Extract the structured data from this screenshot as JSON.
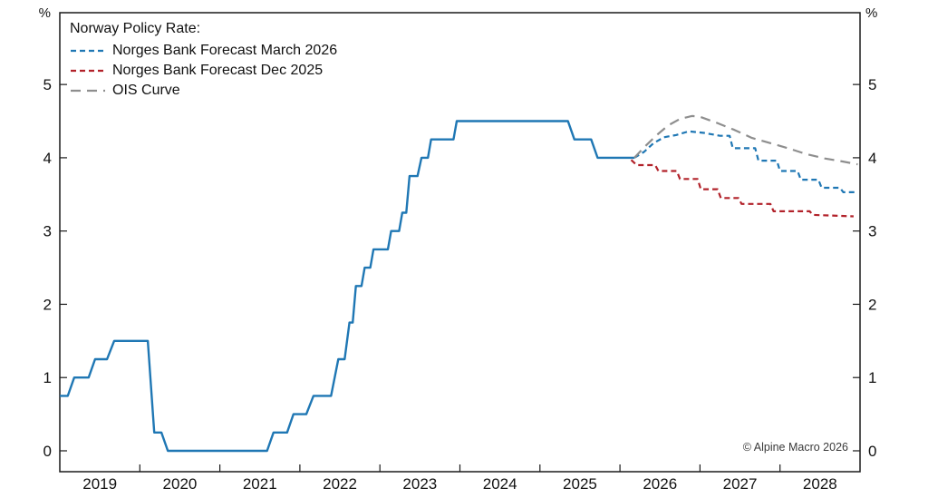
{
  "chart_data": {
    "type": "line",
    "title": "Norway Policy Rate:",
    "unit_label": "%",
    "footnote": "© Alpine Macro 2026",
    "x_axis": {
      "start": 2019,
      "end": 2029,
      "tick_years": [
        2019,
        2020,
        2021,
        2022,
        2023,
        2024,
        2025,
        2026,
        2027,
        2028,
        2029
      ],
      "year_labels": [
        "2019",
        "2020",
        "2021",
        "2022",
        "2023",
        "2024",
        "2025",
        "2026",
        "2027",
        "2028"
      ]
    },
    "y_axis": {
      "min": -0.285,
      "max": 5.98,
      "ticks": [
        0,
        1,
        2,
        3,
        4,
        5
      ]
    },
    "legend": [
      {
        "name": "Norges Bank Forecast March 2026",
        "color": "#1f77b4",
        "dash": "short"
      },
      {
        "name": "Norges Bank Forecast Dec 2025",
        "color": "#b2222a",
        "dash": "short"
      },
      {
        "name": "OIS Curve",
        "color": "#8e8e8e",
        "dash": "long"
      }
    ],
    "series": [
      {
        "name": "Policy Rate (historical)",
        "color": "#1f77b4",
        "dash": "none",
        "width": 2.4,
        "points": [
          [
            2019.0,
            0.75
          ],
          [
            2019.1,
            0.75
          ],
          [
            2019.18,
            1.0
          ],
          [
            2019.36,
            1.0
          ],
          [
            2019.44,
            1.25
          ],
          [
            2019.59,
            1.25
          ],
          [
            2019.68,
            1.5
          ],
          [
            2020.1,
            1.5
          ],
          [
            2020.18,
            0.25
          ],
          [
            2020.27,
            0.25
          ],
          [
            2020.35,
            0.0
          ],
          [
            2021.59,
            0.0
          ],
          [
            2021.67,
            0.25
          ],
          [
            2021.84,
            0.25
          ],
          [
            2021.92,
            0.5
          ],
          [
            2022.08,
            0.5
          ],
          [
            2022.17,
            0.75
          ],
          [
            2022.39,
            0.75
          ],
          [
            2022.48,
            1.25
          ],
          [
            2022.56,
            1.25
          ],
          [
            2022.62,
            1.75
          ],
          [
            2022.66,
            1.75
          ],
          [
            2022.7,
            2.25
          ],
          [
            2022.77,
            2.25
          ],
          [
            2022.81,
            2.5
          ],
          [
            2022.88,
            2.5
          ],
          [
            2022.92,
            2.75
          ],
          [
            2023.1,
            2.75
          ],
          [
            2023.14,
            3.0
          ],
          [
            2023.24,
            3.0
          ],
          [
            2023.28,
            3.25
          ],
          [
            2023.33,
            3.25
          ],
          [
            2023.37,
            3.75
          ],
          [
            2023.47,
            3.75
          ],
          [
            2023.52,
            4.0
          ],
          [
            2023.6,
            4.0
          ],
          [
            2023.64,
            4.25
          ],
          [
            2023.92,
            4.25
          ],
          [
            2023.96,
            4.5
          ],
          [
            2025.35,
            4.5
          ],
          [
            2025.43,
            4.25
          ],
          [
            2025.64,
            4.25
          ],
          [
            2025.72,
            4.0
          ],
          [
            2026.18,
            4.0
          ]
        ]
      },
      {
        "name": "Norges Bank Forecast March 2026",
        "color": "#1f77b4",
        "dash": "short",
        "width": 2.2,
        "points": [
          [
            2026.18,
            4.0
          ],
          [
            2026.3,
            4.08
          ],
          [
            2026.42,
            4.2
          ],
          [
            2026.55,
            4.28
          ],
          [
            2026.7,
            4.31
          ],
          [
            2026.86,
            4.36
          ],
          [
            2027.05,
            4.34
          ],
          [
            2027.25,
            4.3
          ],
          [
            2027.37,
            4.3
          ],
          [
            2027.41,
            4.13
          ],
          [
            2027.69,
            4.13
          ],
          [
            2027.73,
            3.96
          ],
          [
            2027.96,
            3.96
          ],
          [
            2028.0,
            3.82
          ],
          [
            2028.22,
            3.82
          ],
          [
            2028.26,
            3.7
          ],
          [
            2028.48,
            3.7
          ],
          [
            2028.52,
            3.59
          ],
          [
            2028.75,
            3.59
          ],
          [
            2028.79,
            3.53
          ],
          [
            2028.95,
            3.53
          ]
        ]
      },
      {
        "name": "Norges Bank Forecast Dec 2025",
        "color": "#b2222a",
        "dash": "short",
        "width": 2.2,
        "points": [
          [
            2026.14,
            3.97
          ],
          [
            2026.21,
            3.9
          ],
          [
            2026.44,
            3.9
          ],
          [
            2026.48,
            3.82
          ],
          [
            2026.71,
            3.82
          ],
          [
            2026.75,
            3.71
          ],
          [
            2026.97,
            3.71
          ],
          [
            2027.01,
            3.57
          ],
          [
            2027.22,
            3.57
          ],
          [
            2027.26,
            3.45
          ],
          [
            2027.48,
            3.45
          ],
          [
            2027.52,
            3.37
          ],
          [
            2027.88,
            3.37
          ],
          [
            2027.92,
            3.27
          ],
          [
            2028.37,
            3.27
          ],
          [
            2028.41,
            3.22
          ],
          [
            2028.92,
            3.2
          ]
        ]
      },
      {
        "name": "OIS Curve",
        "color": "#8e8e8e",
        "dash": "long",
        "width": 2.2,
        "points": [
          [
            2026.18,
            4.0
          ],
          [
            2026.3,
            4.14
          ],
          [
            2026.45,
            4.3
          ],
          [
            2026.6,
            4.44
          ],
          [
            2026.75,
            4.53
          ],
          [
            2026.9,
            4.57
          ],
          [
            2027.0,
            4.56
          ],
          [
            2027.2,
            4.48
          ],
          [
            2027.43,
            4.38
          ],
          [
            2027.65,
            4.27
          ],
          [
            2027.88,
            4.2
          ],
          [
            2028.1,
            4.13
          ],
          [
            2028.33,
            4.05
          ],
          [
            2028.56,
            3.99
          ],
          [
            2028.78,
            3.95
          ],
          [
            2028.97,
            3.91
          ]
        ]
      }
    ]
  }
}
